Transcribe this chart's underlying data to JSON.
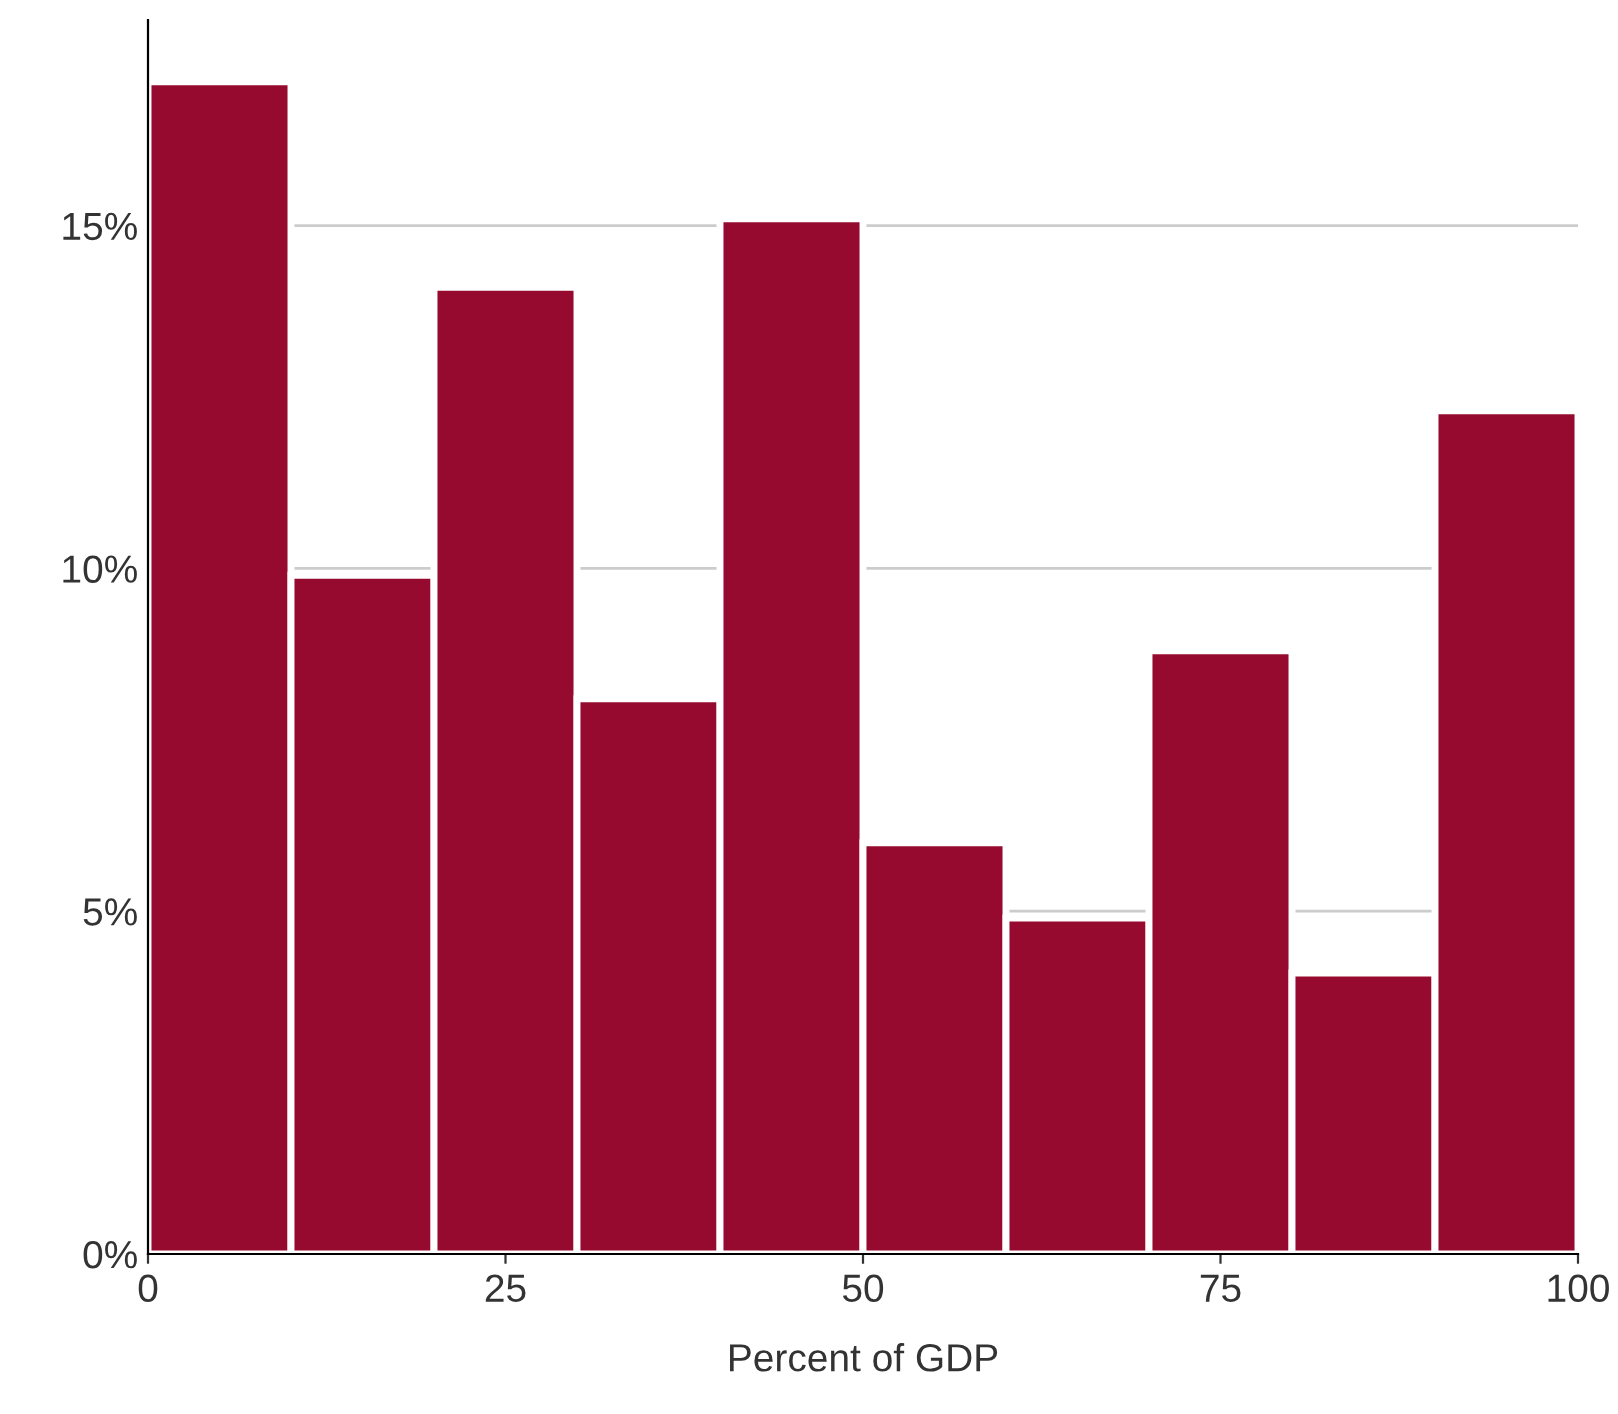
{
  "chart_data": {
    "type": "histogram",
    "xlabel": "Percent of GDP",
    "bins": [
      0,
      10,
      20,
      30,
      40,
      50,
      60,
      70,
      80,
      90,
      100
    ],
    "values": [
      17.1,
      9.9,
      14.1,
      8.1,
      15.1,
      6.0,
      4.9,
      8.8,
      4.1,
      12.3
    ],
    "color": "#960a2f",
    "xlim": [
      0,
      100
    ],
    "xticks": [
      0,
      25,
      50,
      75,
      100
    ],
    "ylim": [
      0,
      18
    ],
    "yticks": [
      {
        "value": 0,
        "label": "0%"
      },
      {
        "value": 5,
        "label": "5%"
      },
      {
        "value": 10,
        "label": "10%"
      },
      {
        "value": 15,
        "label": "15%"
      }
    ],
    "grid": "y"
  }
}
